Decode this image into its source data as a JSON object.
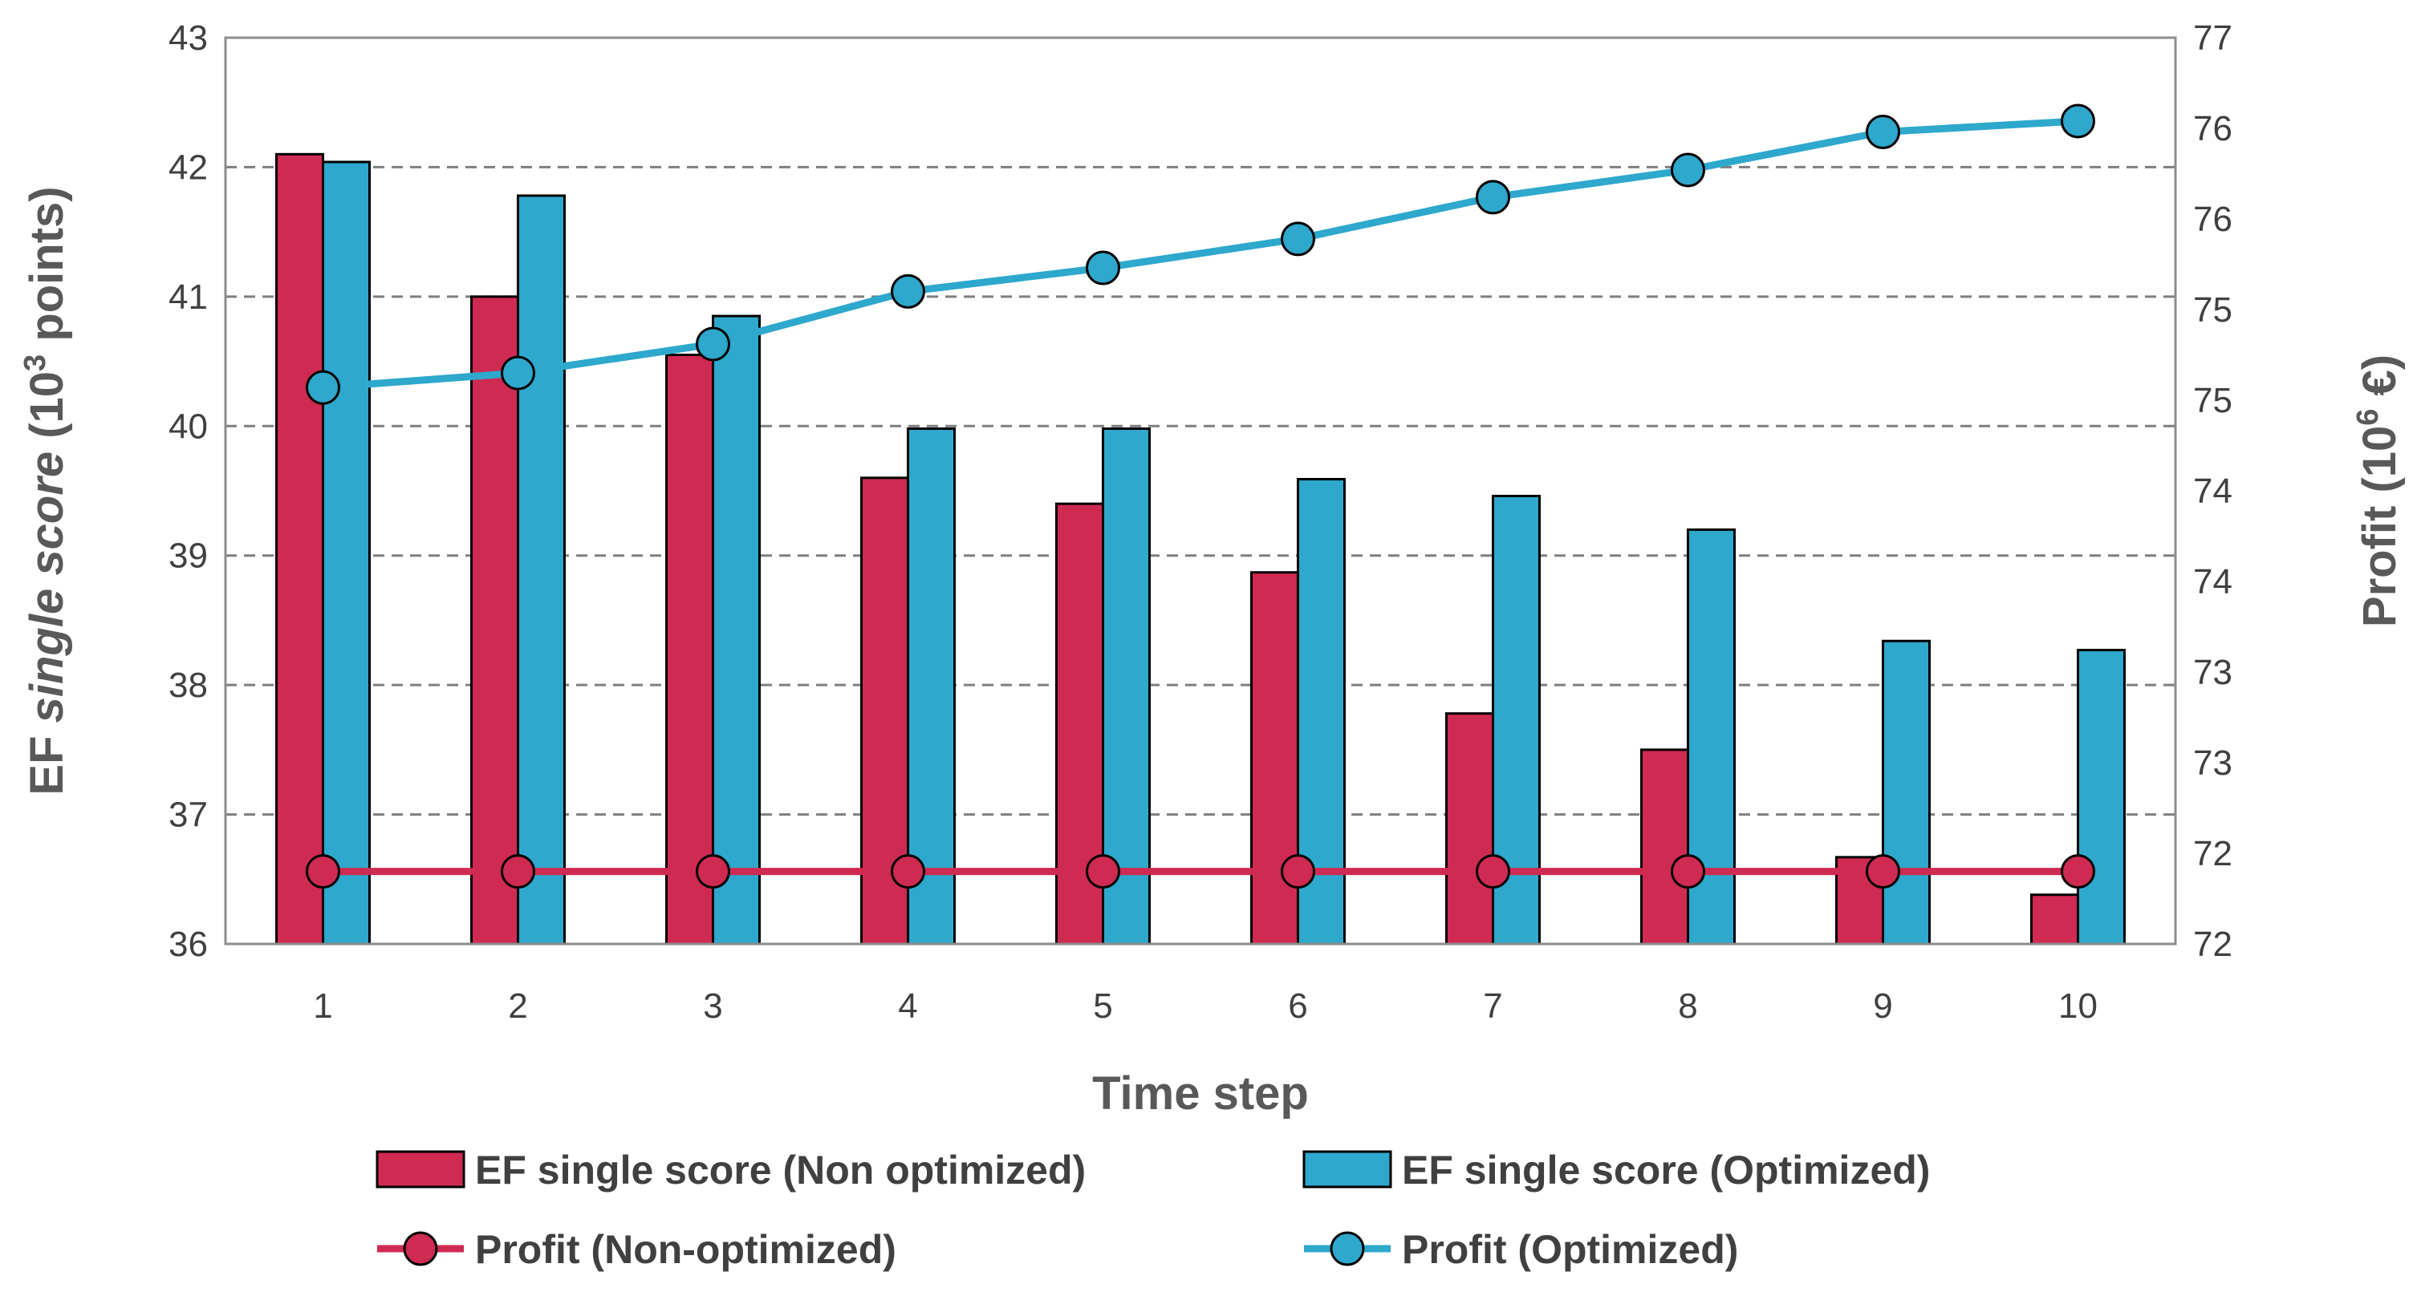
{
  "chart_data": {
    "type": "bar",
    "xlabel": "Time step",
    "ylabel": {
      "prefix": "EF ",
      "italic": "single score",
      "unit": " (10",
      "sup": "3",
      "suffix": " points)"
    },
    "y2label": {
      "prefix": "Profit (10",
      "sup": "6",
      "suffix": " €)"
    },
    "categories": [
      "1",
      "2",
      "3",
      "4",
      "5",
      "6",
      "7",
      "8",
      "9",
      "10"
    ],
    "ylim": [
      36,
      43
    ],
    "y_ticks": [
      "36",
      "37",
      "38",
      "39",
      "40",
      "41",
      "42",
      "43"
    ],
    "y2lim": [
      72,
      77
    ],
    "y2_ticks": [
      "72",
      "72",
      "73",
      "73",
      "74",
      "74",
      "75",
      "75",
      "76",
      "76",
      "77"
    ],
    "grid": true,
    "colors": {
      "non_optimized": "#CF2A52",
      "optimized": "#2EA8CC",
      "outline": "#000000",
      "grid": "#7F7F7F"
    },
    "series": [
      {
        "name": "EF single score (Non optimized)",
        "kind": "bar",
        "axis": "left",
        "values": [
          42.1,
          41.0,
          40.55,
          39.6,
          39.4,
          38.87,
          37.78,
          37.5,
          36.67,
          36.38
        ]
      },
      {
        "name": "EF single score (Optimized)",
        "kind": "bar",
        "axis": "left",
        "values": [
          42.04,
          41.78,
          40.85,
          39.98,
          39.98,
          39.59,
          39.46,
          39.2,
          38.34,
          38.27
        ]
      },
      {
        "name": "Profit (Non-optimized)",
        "kind": "line",
        "axis": "right",
        "values": [
          72.4,
          72.4,
          72.4,
          72.4,
          72.4,
          72.4,
          72.4,
          72.4,
          72.4,
          72.4
        ]
      },
      {
        "name": "Profit (Optimized)",
        "kind": "line",
        "axis": "right",
        "values": [
          75.07,
          75.15,
          75.31,
          75.6,
          75.73,
          75.89,
          76.12,
          76.27,
          76.48,
          76.54
        ]
      }
    ],
    "legend": {
      "position": "bottom",
      "items": [
        {
          "label": "EF single score (Non optimized)",
          "kind": "bar",
          "color": "#CF2A52"
        },
        {
          "label": "EF single score (Optimized)",
          "kind": "bar",
          "color": "#2EA8CC"
        },
        {
          "label": "Profit (Non-optimized)",
          "kind": "line",
          "color": "#CF2A52"
        },
        {
          "label": "Profit (Optimized)",
          "kind": "line",
          "color": "#2EA8CC"
        }
      ]
    }
  }
}
